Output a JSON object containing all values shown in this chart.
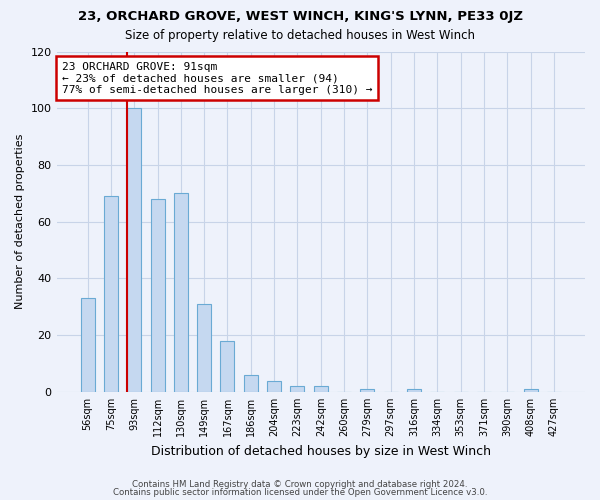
{
  "title1": "23, ORCHARD GROVE, WEST WINCH, KING'S LYNN, PE33 0JZ",
  "title2": "Size of property relative to detached houses in West Winch",
  "xlabel": "Distribution of detached houses by size in West Winch",
  "ylabel": "Number of detached properties",
  "bin_labels": [
    "56sqm",
    "75sqm",
    "93sqm",
    "112sqm",
    "130sqm",
    "149sqm",
    "167sqm",
    "186sqm",
    "204sqm",
    "223sqm",
    "242sqm",
    "260sqm",
    "279sqm",
    "297sqm",
    "316sqm",
    "334sqm",
    "353sqm",
    "371sqm",
    "390sqm",
    "408sqm",
    "427sqm"
  ],
  "bar_heights": [
    33,
    69,
    100,
    68,
    70,
    31,
    18,
    6,
    4,
    2,
    2,
    0,
    1,
    0,
    1,
    0,
    0,
    0,
    0,
    1,
    0
  ],
  "bar_color": "#c5d8f0",
  "bar_edgecolor": "#6aaad4",
  "vline_color": "#cc0000",
  "annotation_line1": "23 ORCHARD GROVE: 91sqm",
  "annotation_line2": "← 23% of detached houses are smaller (94)",
  "annotation_line3": "77% of semi-detached houses are larger (310) →",
  "annotation_box_color": "#cc0000",
  "ylim": [
    0,
    120
  ],
  "yticks": [
    0,
    20,
    40,
    60,
    80,
    100,
    120
  ],
  "footer1": "Contains HM Land Registry data © Crown copyright and database right 2024.",
  "footer2": "Contains public sector information licensed under the Open Government Licence v3.0.",
  "bg_color": "#eef2fb",
  "grid_color": "#c8d4e8"
}
